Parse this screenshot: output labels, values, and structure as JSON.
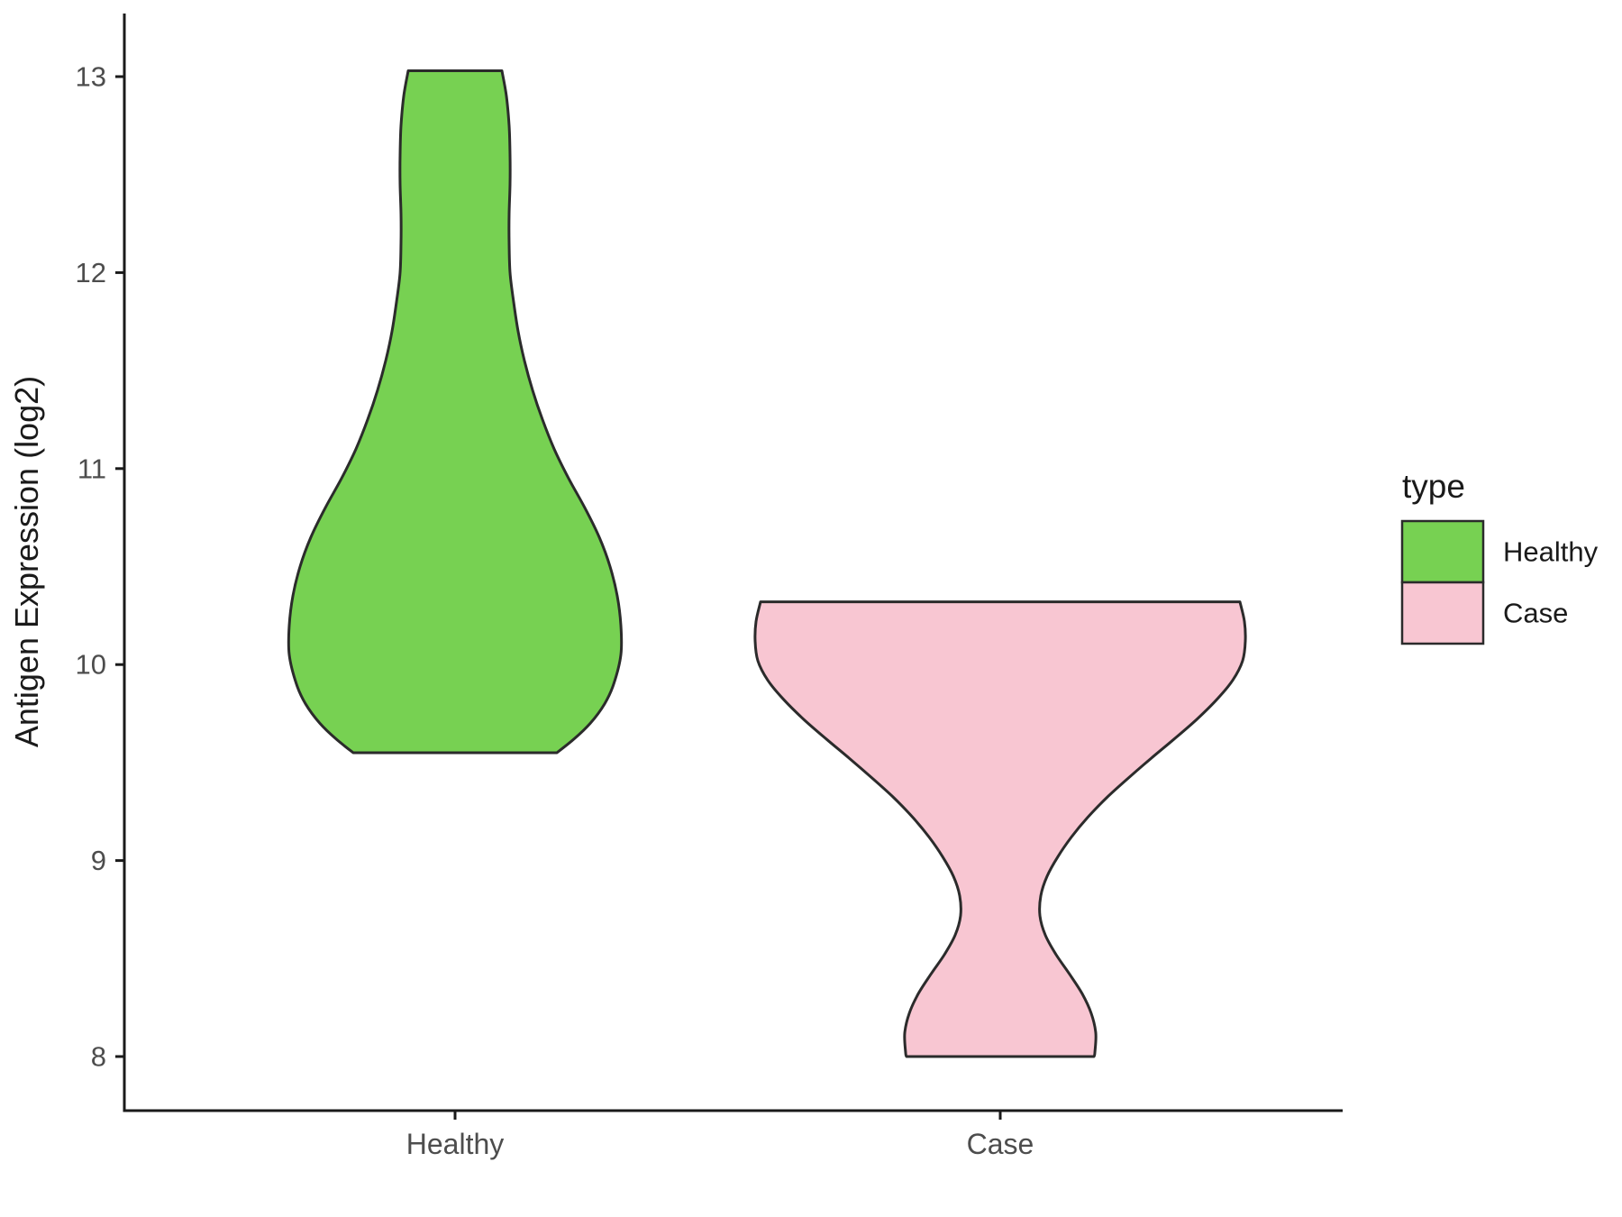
{
  "chart_data": {
    "type": "violin",
    "title": "",
    "xlabel": "",
    "ylabel": "Antigen Expression (log2)",
    "categories": [
      "Healthy",
      "Case"
    ],
    "ylim": [
      7.75,
      13.3
    ],
    "yticks": [
      8,
      9,
      10,
      11,
      12,
      13
    ],
    "grid": false,
    "legend": {
      "title": "type",
      "position": "right",
      "entries": [
        {
          "label": "Healthy",
          "color": "#77D152"
        },
        {
          "label": "Case",
          "color": "#F8C6D2"
        }
      ]
    },
    "violins": [
      {
        "category": "Healthy",
        "fill": "#77D152",
        "y_min": 9.55,
        "y_max": 13.03,
        "profile": [
          [
            13.03,
            52
          ],
          [
            12.9,
            57
          ],
          [
            12.75,
            60
          ],
          [
            12.6,
            61
          ],
          [
            12.45,
            61
          ],
          [
            12.3,
            60
          ],
          [
            12.15,
            60
          ],
          [
            12.0,
            61
          ],
          [
            11.85,
            65
          ],
          [
            11.7,
            70
          ],
          [
            11.55,
            77
          ],
          [
            11.4,
            86
          ],
          [
            11.25,
            97
          ],
          [
            11.1,
            110
          ],
          [
            10.95,
            126
          ],
          [
            10.8,
            144
          ],
          [
            10.65,
            160
          ],
          [
            10.5,
            172
          ],
          [
            10.35,
            180
          ],
          [
            10.2,
            184
          ],
          [
            10.05,
            184
          ],
          [
            9.9,
            176
          ],
          [
            9.8,
            166
          ],
          [
            9.7,
            150
          ],
          [
            9.62,
            132
          ],
          [
            9.55,
            113
          ]
        ]
      },
      {
        "category": "Case",
        "fill": "#F8C6D2",
        "y_min": 8.0,
        "y_max": 10.32,
        "profile": [
          [
            10.32,
            266
          ],
          [
            10.22,
            271
          ],
          [
            10.12,
            272
          ],
          [
            10.02,
            269
          ],
          [
            9.92,
            258
          ],
          [
            9.82,
            240
          ],
          [
            9.72,
            218
          ],
          [
            9.62,
            193
          ],
          [
            9.52,
            167
          ],
          [
            9.42,
            142
          ],
          [
            9.32,
            118
          ],
          [
            9.22,
            97
          ],
          [
            9.12,
            79
          ],
          [
            9.02,
            64
          ],
          [
            8.92,
            52
          ],
          [
            8.82,
            45
          ],
          [
            8.72,
            44
          ],
          [
            8.62,
            50
          ],
          [
            8.52,
            62
          ],
          [
            8.42,
            77
          ],
          [
            8.32,
            91
          ],
          [
            8.22,
            101
          ],
          [
            8.12,
            106
          ],
          [
            8.02,
            105
          ],
          [
            8.0,
            104
          ]
        ]
      }
    ],
    "style": {
      "violin_stroke": "#2b2b2b",
      "axis_color": "#1a1a1a",
      "tick_label_color": "#4d4d4d",
      "title_color": "#1a1a1a",
      "background": "#ffffff"
    }
  }
}
